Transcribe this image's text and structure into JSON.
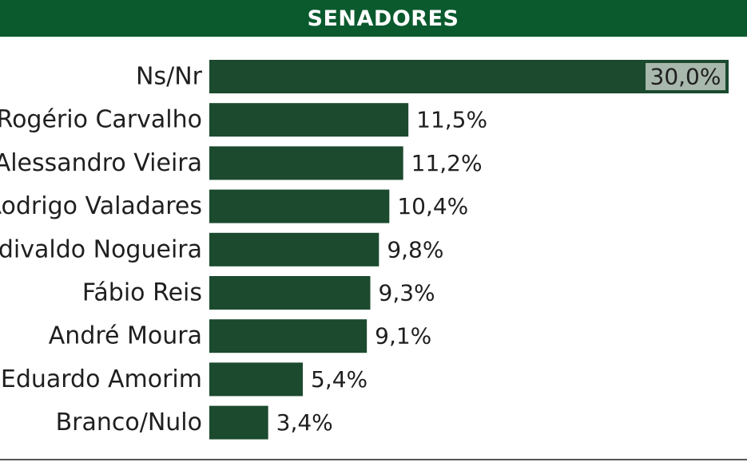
{
  "header": {
    "title": "SENADORES"
  },
  "colors": {
    "header_bg": "#0a5a2e",
    "bar": "#1b4a2e",
    "highlight_label_bg": "#a8b8ad"
  },
  "chart_data": {
    "type": "bar",
    "orientation": "horizontal",
    "title": "SENADORES",
    "categories": [
      "Ns/Nr",
      "Rogério Carvalho",
      "Alessandro Vieira",
      "Rodrigo Valadares",
      "Edivaldo Nogueira",
      "Fábio Reis",
      "André Moura",
      "Eduardo Amorim",
      "Branco/Nulo"
    ],
    "values": [
      30.0,
      11.5,
      11.2,
      10.4,
      9.8,
      9.3,
      9.1,
      5.4,
      3.4
    ],
    "value_labels": [
      "30,0%",
      "11,5%",
      "11,2%",
      "10,4%",
      "9,8%",
      "9,3%",
      "9,1%",
      "5,4%",
      "3,4%"
    ],
    "xlim": [
      0,
      30
    ],
    "grid": false,
    "legend": "none"
  }
}
